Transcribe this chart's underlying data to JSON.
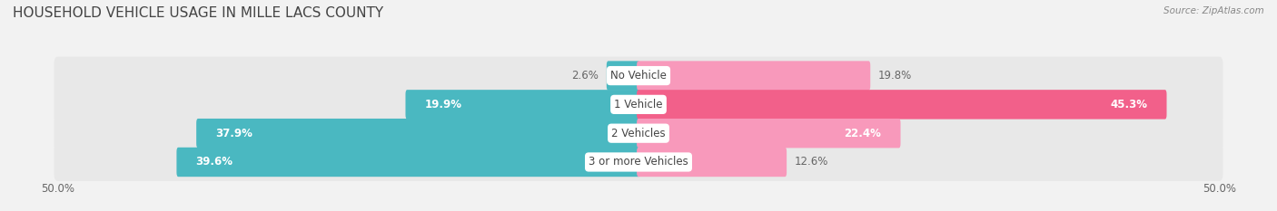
{
  "title": "HOUSEHOLD VEHICLE USAGE IN MILLE LACS COUNTY",
  "source": "Source: ZipAtlas.com",
  "categories": [
    "No Vehicle",
    "1 Vehicle",
    "2 Vehicles",
    "3 or more Vehicles"
  ],
  "owner_values": [
    2.6,
    19.9,
    37.9,
    39.6
  ],
  "renter_values": [
    19.8,
    45.3,
    22.4,
    12.6
  ],
  "owner_color": "#4ab8c1",
  "renter_colors": [
    "#f899bb",
    "#f2608a",
    "#f899bb",
    "#f899bb"
  ],
  "background_color": "#f2f2f2",
  "bar_bg_color": "#e8e8e8",
  "xlim": 50.0,
  "bar_height": 0.72,
  "title_fontsize": 11,
  "label_fontsize": 8.5,
  "category_fontsize": 8.5,
  "legend_fontsize": 8.5,
  "source_fontsize": 7.5
}
